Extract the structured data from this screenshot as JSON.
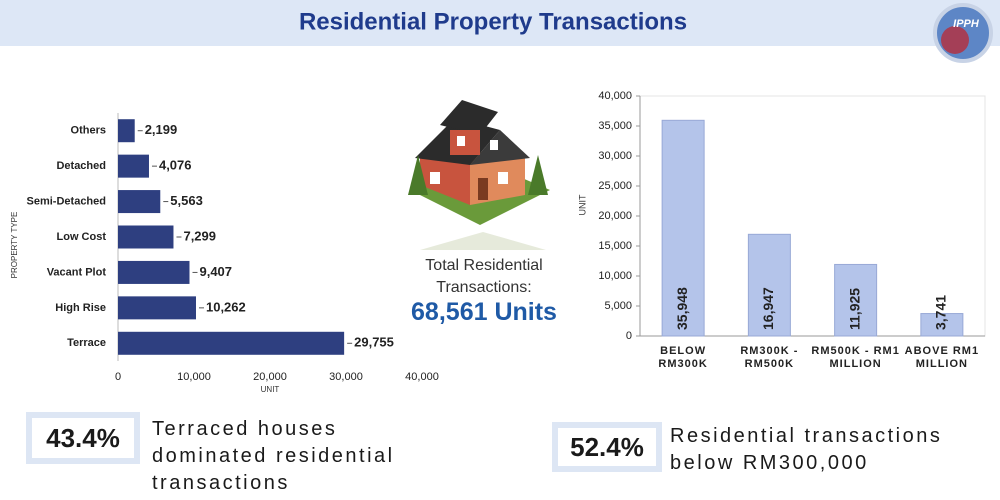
{
  "header": {
    "title": "Residential Property Transactions",
    "logo": "IPPH"
  },
  "chart_data": [
    {
      "type": "bar",
      "orientation": "horizontal",
      "categories": [
        "Others",
        "Detached",
        "Semi-Detached",
        "Low Cost",
        "Vacant Plot",
        "High Rise",
        "Terrace"
      ],
      "values": [
        2199,
        4076,
        5563,
        7299,
        9407,
        10262,
        29755
      ],
      "value_labels": [
        "2,199",
        "4,076",
        "5,563",
        "7,299",
        "9,407",
        "10,262",
        "29,755"
      ],
      "color": "#2e3f80",
      "xlim": [
        0,
        40000
      ],
      "xticks": [
        0,
        {
          "value": 10000,
          "label": "10,000"
        },
        {
          "value": 20000,
          "label": "20,000"
        },
        {
          "value": 30000,
          "label": "30,000"
        },
        {
          "value": 40000,
          "label": "40,000"
        }
      ],
      "x_label": "UNIT",
      "y_label": "PROPERTY TYPE"
    },
    {
      "type": "bar",
      "orientation": "vertical",
      "categories": [
        "BELOW RM300K",
        "RM300K - RM500K",
        "RM500K - RM1 MILLION",
        "ABOVE RM1 MILLION"
      ],
      "values": [
        35948,
        16947,
        11925,
        3741
      ],
      "value_labels": [
        "35,948",
        "16,947",
        "11,925",
        "3,741"
      ],
      "color": "#b4c4ea",
      "ylim": [
        0,
        40000
      ],
      "yticks": [
        0,
        {
          "value": 5000,
          "label": "5,000"
        },
        {
          "value": 10000,
          "label": "10,000"
        },
        {
          "value": 15000,
          "label": "15,000"
        },
        {
          "value": 20000,
          "label": "20,000"
        },
        {
          "value": 25000,
          "label": "25,000"
        },
        {
          "value": 30000,
          "label": "30,000"
        },
        {
          "value": 35000,
          "label": "35,000"
        },
        {
          "value": 40000,
          "label": "40,000"
        }
      ],
      "y_label": "UNIT"
    }
  ],
  "total": {
    "label": "Total Residential Transactions:",
    "value": "68,561 Units"
  },
  "stats": [
    {
      "value": "43.4%",
      "text": "Terraced houses dominated residential transactions"
    },
    {
      "value": "52.4%",
      "text": "Residential transactions below RM300,000"
    }
  ]
}
